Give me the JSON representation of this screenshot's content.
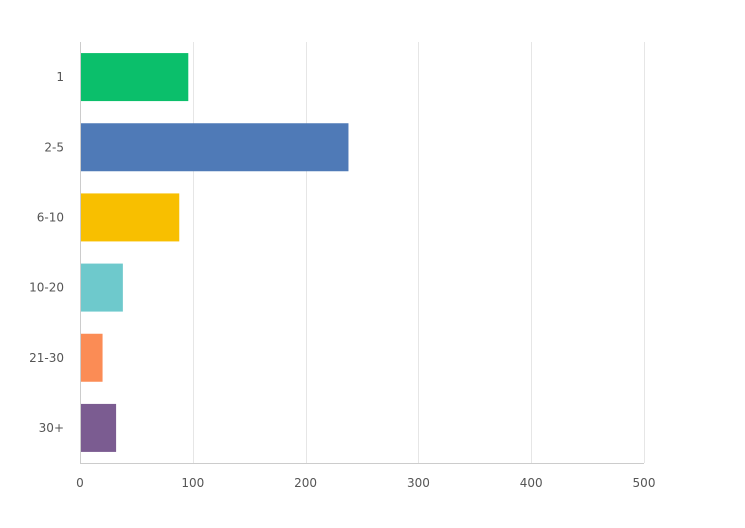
{
  "chart_data": {
    "type": "bar",
    "orientation": "horizontal",
    "categories": [
      "1",
      "2-5",
      "6-10",
      "10-20",
      "21-30",
      "30+"
    ],
    "values": [
      96,
      238,
      88,
      38,
      20,
      32
    ],
    "colors": [
      "#0bbf6b",
      "#4f7ab7",
      "#f8bf00",
      "#6ec9cc",
      "#fb8c55",
      "#7b5c91"
    ],
    "xticks": [
      "0",
      "100",
      "200",
      "300",
      "400",
      "500"
    ],
    "xlim": [
      0,
      500
    ],
    "grid": true,
    "title": "",
    "xlabel": "",
    "ylabel": ""
  }
}
